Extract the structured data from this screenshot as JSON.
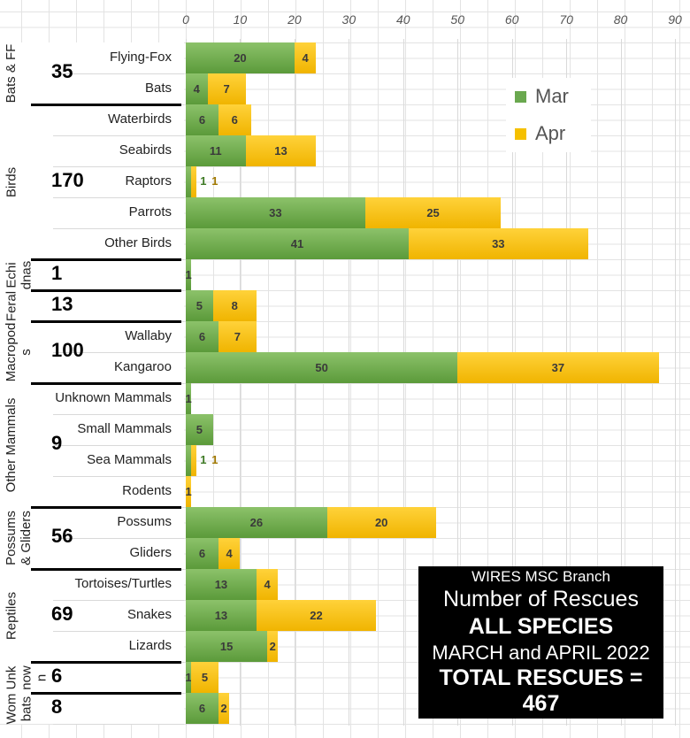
{
  "chart_data": {
    "type": "bar",
    "orientation": "horizontal-stacked",
    "xlim": [
      0,
      90
    ],
    "x_ticks": [
      "0",
      "10",
      "20",
      "30",
      "40",
      "50",
      "60",
      "70",
      "80",
      "90"
    ],
    "categories": [
      "Flying-Fox",
      "Bats",
      "Waterbirds",
      "Seabirds",
      "Raptors",
      "Parrots",
      "Other Birds",
      "",
      "",
      "Wallaby",
      "Kangaroo",
      "Unknown Mammals",
      "Small Mammals",
      "Sea Mammals",
      "Rodents",
      "Possums",
      "Gliders",
      "Tortoises/Turtles",
      "Snakes",
      "Lizards",
      "",
      ""
    ],
    "series": [
      {
        "name": "Mar",
        "color": "#6aa84f",
        "values": [
          20,
          4,
          6,
          11,
          1,
          33,
          41,
          1,
          5,
          6,
          50,
          1,
          5,
          1,
          0,
          26,
          6,
          13,
          13,
          15,
          1,
          6
        ]
      },
      {
        "name": "Apr",
        "color": "#f5c000",
        "values": [
          4,
          7,
          6,
          13,
          1,
          25,
          33,
          0,
          8,
          7,
          37,
          0,
          0,
          1,
          1,
          20,
          4,
          4,
          22,
          2,
          5,
          2
        ]
      }
    ],
    "groups": [
      {
        "label": "Bats & FF",
        "total": "35",
        "start": 0,
        "count": 2
      },
      {
        "label": "Birds",
        "total": "170",
        "start": 2,
        "count": 5
      },
      {
        "label": "Echidnas",
        "total": "1",
        "start": 7,
        "count": 1
      },
      {
        "label": "Feral",
        "total": "13",
        "start": 8,
        "count": 1
      },
      {
        "label": "Macropods",
        "total": "100",
        "start": 9,
        "count": 2
      },
      {
        "label": "Other Mammals",
        "total": "9",
        "start": 11,
        "count": 4
      },
      {
        "label": "Possums & Gliders",
        "total": "56",
        "start": 15,
        "count": 2
      },
      {
        "label": "Reptiles",
        "total": "69",
        "start": 17,
        "count": 3
      },
      {
        "label": "Unknown",
        "total": "6",
        "start": 20,
        "count": 1
      },
      {
        "label": "Wombats",
        "total": "8",
        "start": 21,
        "count": 1
      }
    ],
    "legend": {
      "position": "top-right",
      "entries": [
        "Mar",
        "Apr"
      ]
    }
  },
  "title_box": {
    "line1": "WIRES MSC Branch",
    "line2": "Number of Rescues",
    "line3": "ALL SPECIES",
    "line4": "MARCH and APRIL 2022",
    "line5": "TOTAL RESCUES = 467"
  }
}
